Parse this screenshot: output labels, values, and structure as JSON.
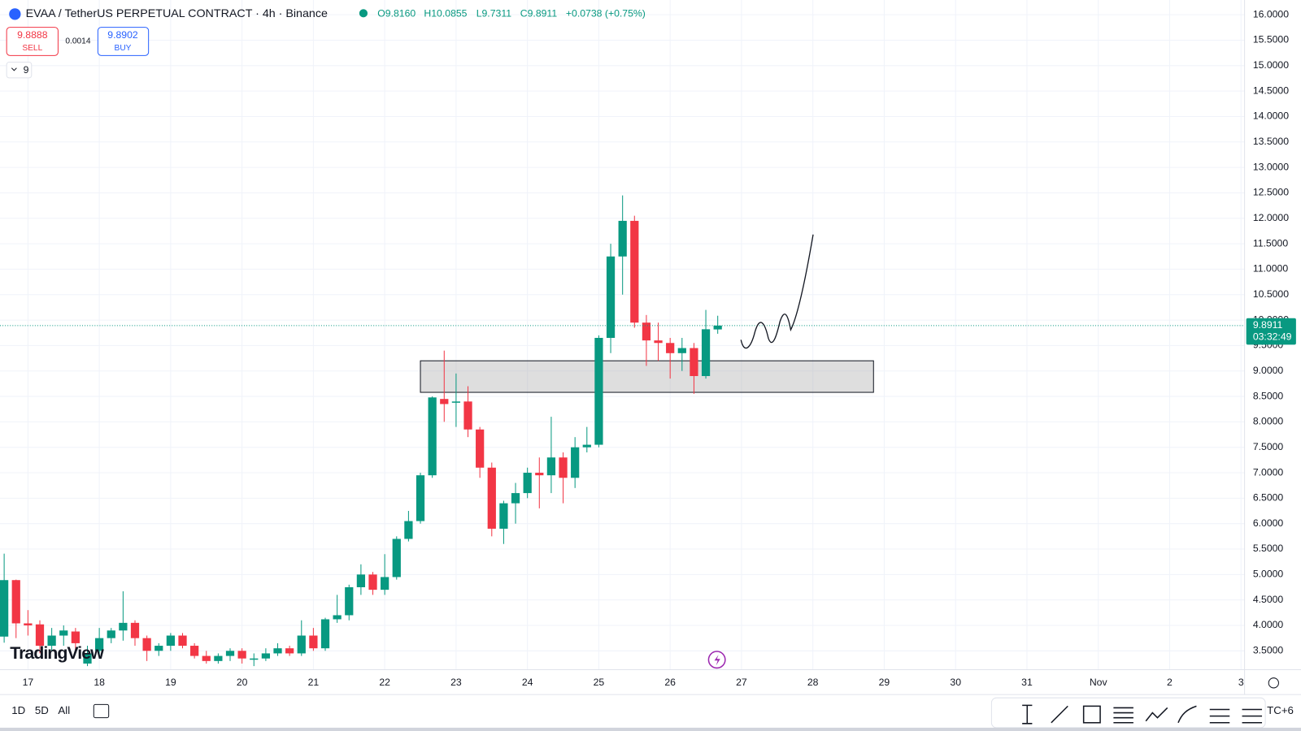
{
  "header": {
    "symbol": "EVAA / TetherUS PERPETUAL CONTRACT · 4h · Binance",
    "open": "O9.8160",
    "high": "H10.0855",
    "low": "L9.7311",
    "close": "C9.8911",
    "change": "+0.0738 (+0.75%)"
  },
  "trade": {
    "sell_price": "9.8888",
    "sell": "SELL",
    "spread": "0.0014",
    "buy_price": "9.8902",
    "buy": "BUY"
  },
  "indicators": "9",
  "logo": "TradingView",
  "timeframes": [
    "1D",
    "5D",
    "All"
  ],
  "timezone": "TC+6",
  "chart_data": {
    "type": "candlestick",
    "up_color": "#089981",
    "down_color": "#f23645",
    "x": [
      0,
      1,
      2,
      3,
      4,
      5,
      6,
      7,
      8,
      9,
      10,
      11,
      12,
      13,
      14,
      15,
      16,
      17,
      18,
      19,
      20,
      21,
      22,
      23,
      24,
      25,
      26,
      27,
      28,
      29,
      30,
      31,
      32,
      33,
      34,
      35,
      36,
      37,
      38,
      39,
      40,
      41,
      42,
      43,
      44,
      45,
      46,
      47,
      48,
      49,
      50,
      51,
      52,
      53,
      54,
      55,
      56,
      57,
      58,
      59,
      60
    ],
    "open": [
      3.78,
      4.89,
      4.04,
      4.02,
      3.6,
      3.8,
      3.88,
      3.25,
      3.5,
      3.75,
      3.9,
      4.05,
      3.75,
      3.5,
      3.6,
      3.8,
      3.6,
      3.4,
      3.3,
      3.4,
      3.5,
      3.33,
      3.35,
      3.45,
      3.55,
      3.45,
      3.8,
      3.55,
      4.12,
      4.2,
      4.75,
      5.0,
      4.7,
      4.95,
      5.7,
      6.05,
      6.95,
      8.45,
      8.38,
      8.4,
      7.85,
      7.1,
      5.9,
      6.4,
      6.6,
      7.0,
      6.95,
      7.3,
      6.9,
      7.5,
      7.55,
      9.65,
      11.25,
      11.95,
      9.95,
      9.6,
      9.55,
      9.35,
      9.45,
      8.9,
      9.816
    ],
    "high": [
      5.41,
      4.9,
      4.3,
      4.1,
      3.95,
      4.0,
      3.95,
      3.6,
      3.95,
      3.95,
      4.67,
      4.1,
      3.8,
      3.65,
      3.85,
      3.85,
      3.65,
      3.5,
      3.45,
      3.55,
      3.55,
      3.45,
      3.55,
      3.65,
      3.6,
      4.1,
      3.95,
      4.15,
      4.6,
      4.8,
      5.2,
      5.05,
      5.4,
      5.75,
      6.25,
      7.0,
      8.5,
      9.4,
      8.95,
      8.7,
      7.9,
      7.2,
      6.45,
      6.8,
      7.1,
      7.3,
      8.1,
      7.4,
      7.7,
      7.9,
      9.7,
      11.5,
      12.45,
      12.05,
      10.1,
      9.95,
      9.65,
      9.65,
      9.55,
      10.2,
      10.0855
    ],
    "low": [
      3.66,
      3.75,
      3.8,
      3.45,
      3.5,
      3.6,
      3.5,
      3.2,
      3.35,
      3.65,
      3.7,
      3.6,
      3.3,
      3.4,
      3.5,
      3.55,
      3.35,
      3.25,
      3.25,
      3.3,
      3.25,
      3.2,
      3.3,
      3.4,
      3.4,
      3.4,
      3.5,
      3.5,
      4.05,
      4.1,
      4.6,
      4.6,
      4.6,
      4.9,
      5.65,
      6.0,
      6.9,
      8.0,
      7.9,
      7.7,
      6.9,
      5.75,
      5.6,
      6.0,
      6.5,
      6.3,
      6.6,
      6.4,
      6.7,
      7.4,
      7.5,
      9.35,
      10.5,
      9.85,
      9.1,
      9.2,
      8.85,
      9.0,
      8.55,
      8.85,
      9.7311
    ],
    "close": [
      4.89,
      4.04,
      4.0,
      3.6,
      3.8,
      3.9,
      3.65,
      3.45,
      3.75,
      3.9,
      4.05,
      3.75,
      3.5,
      3.6,
      3.8,
      3.6,
      3.4,
      3.3,
      3.4,
      3.5,
      3.35,
      3.35,
      3.45,
      3.55,
      3.45,
      3.8,
      3.55,
      4.12,
      4.2,
      4.75,
      5.0,
      4.7,
      4.95,
      5.7,
      6.05,
      6.95,
      8.48,
      8.35,
      8.4,
      7.85,
      7.1,
      5.9,
      6.4,
      6.6,
      7.0,
      6.95,
      7.3,
      6.9,
      7.5,
      7.55,
      9.65,
      11.25,
      11.95,
      9.95,
      9.6,
      9.55,
      9.35,
      9.45,
      8.9,
      9.82,
      9.8911
    ],
    "xlim": [
      -0.35,
      104.3
    ],
    "xticks": [
      {
        "value": 2,
        "label": "17"
      },
      {
        "value": 8,
        "label": "18"
      },
      {
        "value": 14,
        "label": "19"
      },
      {
        "value": 20,
        "label": "20"
      },
      {
        "value": 26,
        "label": "21"
      },
      {
        "value": 32,
        "label": "22"
      },
      {
        "value": 38,
        "label": "23"
      },
      {
        "value": 44,
        "label": "24"
      },
      {
        "value": 50,
        "label": "25"
      },
      {
        "value": 56,
        "label": "26"
      },
      {
        "value": 62,
        "label": "27"
      },
      {
        "value": 68,
        "label": "28"
      },
      {
        "value": 74,
        "label": "29"
      },
      {
        "value": 80,
        "label": "30"
      },
      {
        "value": 86,
        "label": "31"
      },
      {
        "value": 92,
        "label": "Nov"
      },
      {
        "value": 98,
        "label": "2"
      },
      {
        "value": 104,
        "label": "3"
      }
    ],
    "ylim": [
      3.13,
      16.29
    ],
    "yticks": [
      {
        "value": 3.5,
        "label": "3.5000"
      },
      {
        "value": 4,
        "label": "4.0000"
      },
      {
        "value": 4.5,
        "label": "4.5000"
      },
      {
        "value": 5,
        "label": "5.0000"
      },
      {
        "value": 5.5,
        "label": "5.5000"
      },
      {
        "value": 6,
        "label": "6.0000"
      },
      {
        "value": 6.5,
        "label": "6.5000"
      },
      {
        "value": 7,
        "label": "7.0000"
      },
      {
        "value": 7.5,
        "label": "7.5000"
      },
      {
        "value": 8,
        "label": "8.0000"
      },
      {
        "value": 8.5,
        "label": "8.5000"
      },
      {
        "value": 9,
        "label": "9.0000"
      },
      {
        "value": 9.5,
        "label": "9.5000"
      },
      {
        "value": 10,
        "label": "10.0000"
      },
      {
        "value": 10.5,
        "label": "10.5000"
      },
      {
        "value": 11,
        "label": "11.0000"
      },
      {
        "value": 11.5,
        "label": "11.5000"
      },
      {
        "value": 12,
        "label": "12.0000"
      },
      {
        "value": 12.5,
        "label": "12.5000"
      },
      {
        "value": 13,
        "label": "13.0000"
      },
      {
        "value": 13.5,
        "label": "13.5000"
      },
      {
        "value": 14,
        "label": "14.0000"
      },
      {
        "value": 14.5,
        "label": "14.5000"
      },
      {
        "value": 15,
        "label": "15.0000"
      },
      {
        "value": 15.5,
        "label": "15.5000"
      },
      {
        "value": 16,
        "label": "16.0000"
      }
    ],
    "grid": true,
    "zone": {
      "from": 35,
      "to": 73.1,
      "low": 8.58,
      "high": 9.2
    },
    "last_price": 9.8911,
    "countdown": "03:32:49"
  }
}
